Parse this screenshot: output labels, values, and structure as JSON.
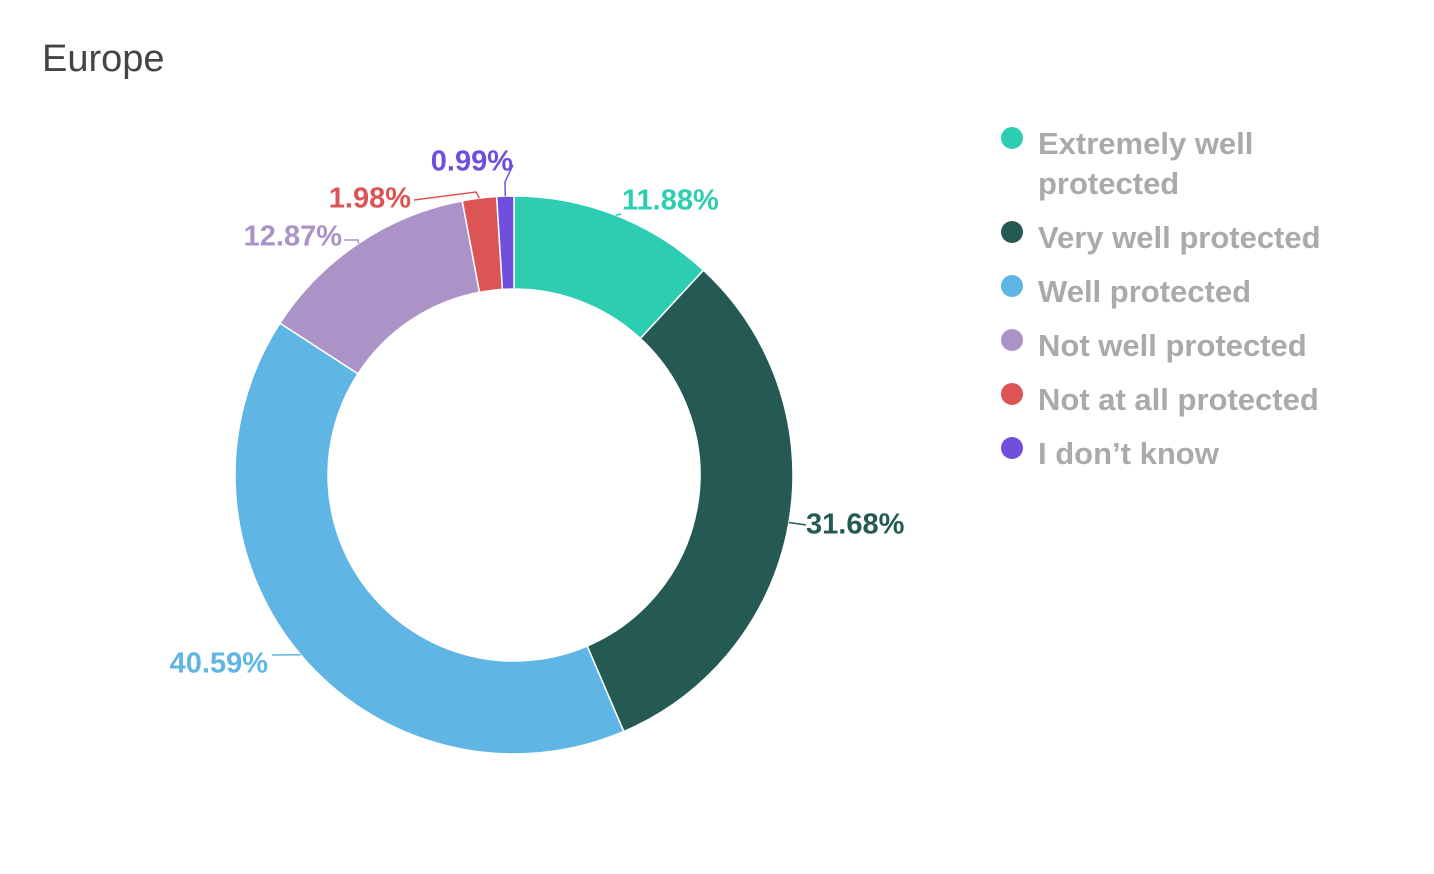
{
  "title": "Europe",
  "chart_data": {
    "type": "pie",
    "variant": "donut",
    "title": "Europe",
    "legend_position": "right",
    "series": [
      {
        "name": "Extremely well protected",
        "value": 11.88,
        "label": "11.88%",
        "color": "#2ccdb1"
      },
      {
        "name": "Very well protected",
        "value": 31.68,
        "label": "31.68%",
        "color": "#255a53"
      },
      {
        "name": "Well protected",
        "value": 40.59,
        "label": "40.59%",
        "color": "#5fb6e4"
      },
      {
        "name": "Not well protected",
        "value": 12.87,
        "label": "12.87%",
        "color": "#ab93c8"
      },
      {
        "name": "Not at all protected",
        "value": 1.98,
        "label": "1.98%",
        "color": "#dd5454"
      },
      {
        "name": "I don’t know",
        "value": 0.99,
        "label": "0.99%",
        "color": "#6f4fdc"
      }
    ]
  }
}
